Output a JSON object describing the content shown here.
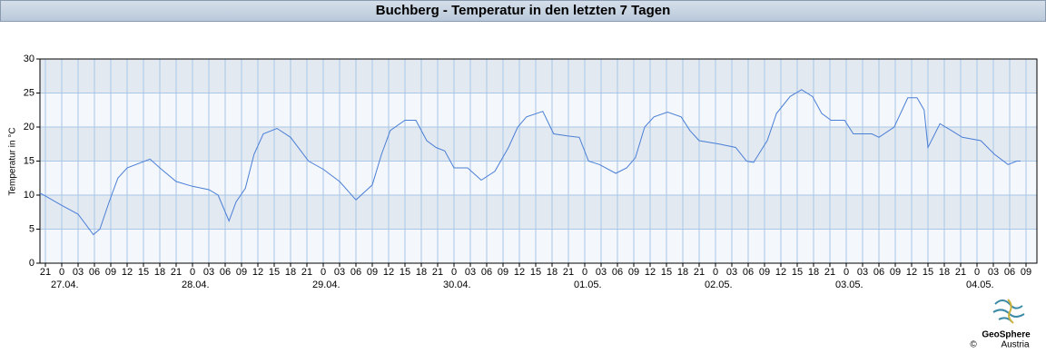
{
  "chart_data": {
    "type": "line",
    "title": "Buchberg - Temperatur in den letzten 7 Tagen",
    "y_label": "Temperatur in °C",
    "logo_name": "GeoSphere",
    "logo_sub": "Austria",
    "copyright": "©",
    "x": [
      -4,
      -3.3,
      0,
      3,
      5.8,
      7,
      8.7,
      10.3,
      12,
      16.2,
      18,
      21,
      24,
      27,
      28.7,
      30.7,
      32,
      33.7,
      35.3,
      37,
      39.5,
      42,
      45.3,
      48,
      51,
      54,
      57,
      58.7,
      60.3,
      63,
      65,
      67,
      68.7,
      70.3,
      72,
      74.5,
      77,
      79.5,
      82,
      83.7,
      85.3,
      88.3,
      90.3,
      92.8,
      95,
      96.7,
      98.7,
      101.7,
      103.7,
      105.3,
      107,
      108.7,
      111.2,
      113.7,
      115.3,
      117,
      120.7,
      123.7,
      125.7,
      127,
      128.7,
      129.5,
      131.2,
      133.7,
      135.8,
      137.8,
      139.5,
      141.2,
      143.7,
      145.3,
      148.7,
      150,
      152.8,
      155.3,
      157,
      158.3,
      159,
      161.2,
      163.3,
      165.3,
      168.7,
      171.2,
      173.7,
      175.3,
      176
    ],
    "series": [
      {
        "name": "Temperatur",
        "color": "#4a7fd6",
        "values": [
          10.3,
          10,
          8.5,
          7.2,
          4.2,
          5,
          9,
          12.5,
          14,
          15.3,
          14,
          12,
          11.3,
          10.8,
          10,
          6.2,
          9,
          11,
          16,
          19,
          19.8,
          18.5,
          15,
          13.8,
          12,
          9.3,
          11.5,
          16,
          19.5,
          21,
          21,
          18,
          17,
          16.5,
          14,
          14,
          12.2,
          13.5,
          17,
          20,
          21.5,
          22.3,
          19,
          18.7,
          18.5,
          15,
          14.5,
          13.2,
          14,
          15.5,
          20,
          21.5,
          22.2,
          21.5,
          19.5,
          18,
          17.5,
          17,
          15,
          14.8,
          17,
          18,
          22,
          24.5,
          25.5,
          24.5,
          22,
          21,
          21,
          19,
          19,
          18.5,
          20,
          24.3,
          24.3,
          22.5,
          17,
          20.5,
          19.5,
          18.5,
          18,
          16,
          14.5,
          15,
          15
        ]
      }
    ],
    "xlim": [
      -4,
      179
    ],
    "ylim": [
      0,
      30
    ],
    "yticks": [
      0,
      5,
      10,
      15,
      20,
      25,
      30
    ],
    "grid": true,
    "xticks": [
      {
        "value": -3,
        "label": "21"
      },
      {
        "value": 0,
        "label": "0"
      },
      {
        "value": 3,
        "label": "03"
      },
      {
        "value": 6,
        "label": "06"
      },
      {
        "value": 9,
        "label": "09"
      },
      {
        "value": 12,
        "label": "12"
      },
      {
        "value": 15,
        "label": "15"
      },
      {
        "value": 18,
        "label": "18"
      },
      {
        "value": 21,
        "label": "21"
      },
      {
        "value": 24,
        "label": "0"
      },
      {
        "value": 27,
        "label": "03"
      },
      {
        "value": 30,
        "label": "06"
      },
      {
        "value": 33,
        "label": "09"
      },
      {
        "value": 36,
        "label": "12"
      },
      {
        "value": 39,
        "label": "15"
      },
      {
        "value": 42,
        "label": "18"
      },
      {
        "value": 45,
        "label": "21"
      },
      {
        "value": 48,
        "label": "0"
      },
      {
        "value": 51,
        "label": "03"
      },
      {
        "value": 54,
        "label": "06"
      },
      {
        "value": 57,
        "label": "09"
      },
      {
        "value": 60,
        "label": "12"
      },
      {
        "value": 63,
        "label": "15"
      },
      {
        "value": 66,
        "label": "18"
      },
      {
        "value": 69,
        "label": "21"
      },
      {
        "value": 72,
        "label": "0"
      },
      {
        "value": 75,
        "label": "03"
      },
      {
        "value": 78,
        "label": "06"
      },
      {
        "value": 81,
        "label": "09"
      },
      {
        "value": 84,
        "label": "12"
      },
      {
        "value": 87,
        "label": "15"
      },
      {
        "value": 90,
        "label": "18"
      },
      {
        "value": 93,
        "label": "21"
      },
      {
        "value": 96,
        "label": "0"
      },
      {
        "value": 99,
        "label": "03"
      },
      {
        "value": 102,
        "label": "06"
      },
      {
        "value": 105,
        "label": "09"
      },
      {
        "value": 108,
        "label": "12"
      },
      {
        "value": 111,
        "label": "15"
      },
      {
        "value": 114,
        "label": "18"
      },
      {
        "value": 117,
        "label": "21"
      },
      {
        "value": 120,
        "label": "0"
      },
      {
        "value": 123,
        "label": "03"
      },
      {
        "value": 126,
        "label": "06"
      },
      {
        "value": 129,
        "label": "09"
      },
      {
        "value": 132,
        "label": "12"
      },
      {
        "value": 135,
        "label": "15"
      },
      {
        "value": 138,
        "label": "18"
      },
      {
        "value": 141,
        "label": "21"
      },
      {
        "value": 144,
        "label": "0"
      },
      {
        "value": 147,
        "label": "03"
      },
      {
        "value": 150,
        "label": "06"
      },
      {
        "value": 153,
        "label": "09"
      },
      {
        "value": 156,
        "label": "12"
      },
      {
        "value": 159,
        "label": "15"
      },
      {
        "value": 162,
        "label": "18"
      },
      {
        "value": 165,
        "label": "21"
      },
      {
        "value": 168,
        "label": "0"
      },
      {
        "value": 171,
        "label": "03"
      },
      {
        "value": 174,
        "label": "06"
      },
      {
        "value": 177,
        "label": "09"
      }
    ],
    "date_labels": [
      {
        "value": 0,
        "label": "27.04."
      },
      {
        "value": 24,
        "label": "28.04."
      },
      {
        "value": 48,
        "label": "29.04."
      },
      {
        "value": 72,
        "label": "30.04."
      },
      {
        "value": 96,
        "label": "01.05."
      },
      {
        "value": 120,
        "label": "02.05."
      },
      {
        "value": 144,
        "label": "03.05."
      },
      {
        "value": 168,
        "label": "04.05."
      }
    ]
  }
}
